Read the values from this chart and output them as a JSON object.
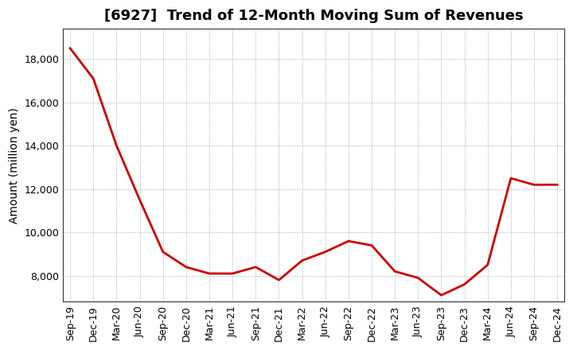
{
  "title": "[6927]  Trend of 12-Month Moving Sum of Revenues",
  "ylabel": "Amount (million yen)",
  "line_color": "#cc0000",
  "background_color": "#ffffff",
  "plot_bg_color": "#ffffff",
  "grid_color": "#999999",
  "x_labels": [
    "Sep-19",
    "Dec-19",
    "Mar-20",
    "Jun-20",
    "Sep-20",
    "Dec-20",
    "Mar-21",
    "Jun-21",
    "Sep-21",
    "Dec-21",
    "Mar-22",
    "Jun-22",
    "Sep-22",
    "Dec-22",
    "Mar-23",
    "Jun-23",
    "Sep-23",
    "Dec-23",
    "Mar-24",
    "Jun-24",
    "Sep-24",
    "Dec-24"
  ],
  "values": [
    18500,
    17100,
    14000,
    11500,
    9100,
    8400,
    8100,
    8100,
    8400,
    7800,
    8700,
    9100,
    9600,
    9400,
    8200,
    7900,
    7100,
    7600,
    8500,
    12500,
    12200,
    12200
  ],
  "ylim": [
    6800,
    19400
  ],
  "yticks": [
    8000,
    10000,
    12000,
    14000,
    16000,
    18000
  ],
  "title_fontsize": 13,
  "label_fontsize": 10,
  "tick_fontsize": 9
}
